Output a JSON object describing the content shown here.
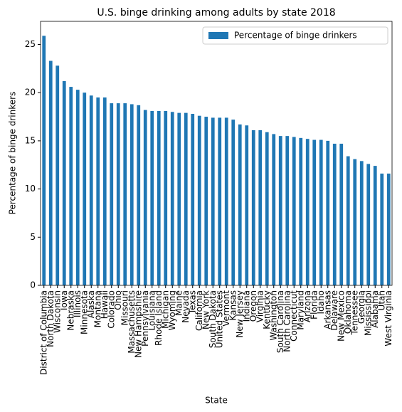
{
  "chart_data": {
    "type": "bar",
    "title": "U.S. binge drinking among adults by state 2018",
    "xlabel": "State",
    "ylabel": "Percentage of binge drinkers",
    "categories": [
      "District of Columbia",
      "North Dakota",
      "Wisconsin",
      "Iowa",
      "Nebraska",
      "Illinois",
      "Minnesota",
      "Alaska",
      "Montana",
      "Hawaii",
      "Colorado",
      "Ohio",
      "Missouri",
      "Massachusetts",
      "New Hampshire",
      "Pennsylvania",
      "Louisiana",
      "Rhode Island",
      "Michigan",
      "Wyoming",
      "Maine",
      "Nevada",
      "Texas",
      "California",
      "New York",
      "South Dakota",
      "United States",
      "Vermont",
      "Kansas",
      "New Jersey",
      "Indiana",
      "Oregon",
      "Virginia",
      "Kentucky",
      "Washington",
      "South Carolina",
      "North Carolina",
      "Connecticut",
      "Maryland",
      "Arizona",
      "Florida",
      "Idaho",
      "Arkansas",
      "Delaware",
      "New Mexico",
      "Oklahoma",
      "Tennessee",
      "Georgia",
      "Mississippi",
      "Alabama",
      "Utah",
      "West Virginia"
    ],
    "series": [
      {
        "name": "Percentage of binge drinkers",
        "color": "#1f77b4",
        "values": [
          25.9,
          23.3,
          22.8,
          21.2,
          20.6,
          20.3,
          20.0,
          19.7,
          19.5,
          19.5,
          18.9,
          18.9,
          18.9,
          18.8,
          18.7,
          18.2,
          18.1,
          18.1,
          18.1,
          18.0,
          17.9,
          17.9,
          17.8,
          17.6,
          17.5,
          17.4,
          17.4,
          17.4,
          17.2,
          16.7,
          16.6,
          16.1,
          16.1,
          15.9,
          15.7,
          15.5,
          15.5,
          15.4,
          15.3,
          15.2,
          15.1,
          15.1,
          15.0,
          14.7,
          14.7,
          13.4,
          13.1,
          12.9,
          12.6,
          12.4,
          11.6,
          11.6
        ]
      }
    ],
    "ylim": [
      0,
      27.4
    ],
    "yticks": [
      0,
      5,
      10,
      15,
      20,
      25
    ],
    "legend": "upper right"
  }
}
